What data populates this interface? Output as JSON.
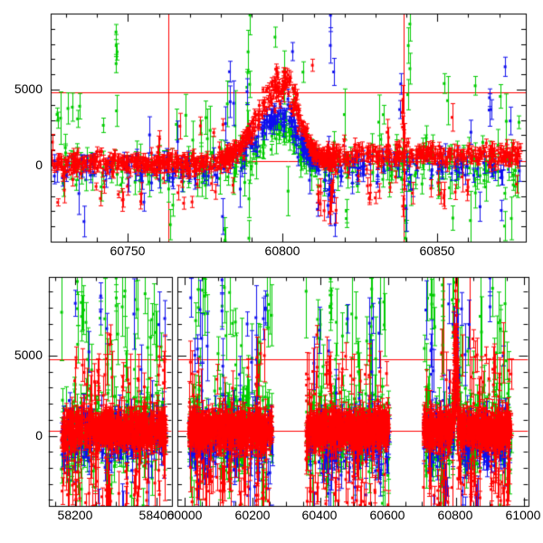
{
  "figure": {
    "background": "#ffffff",
    "frame_color": "#000000",
    "crosshair_color": "#ff0000",
    "colors": {
      "g": "#00cc00",
      "b": "#0f0fee",
      "r": "#ff0000"
    },
    "marker": "filled-square-with-error-bars"
  },
  "chart_data": [
    {
      "id": "top-panel",
      "type": "scatter",
      "title": "",
      "xlabel": "",
      "ylabel": "",
      "x_range": [
        60725,
        60878.6
      ],
      "y_range": [
        -5000,
        10000
      ],
      "x_tick_labels": [
        "60750",
        "60800",
        "60850"
      ],
      "x_tick_values": [
        60750,
        60800,
        60850
      ],
      "x_minor_step": 10,
      "y_tick_labels": [
        "5000",
        "0"
      ],
      "y_tick_values": [
        5000,
        0
      ],
      "y_minor_step": 1000,
      "crosshair": {
        "h_values": [
          4800,
          300
        ],
        "v_values": [
          60763,
          60839
        ]
      },
      "series_names": [
        "green-band",
        "blue-band",
        "red-band"
      ],
      "clusters": [
        [
          "g",
          250,
          60725,
          60877,
          -150,
          750,
          350,
          1100,
          0.12,
          0.68,
          1800,
          4500
        ],
        [
          "b",
          200,
          60725,
          60877,
          -150,
          500,
          250,
          700,
          0.09,
          0.45,
          1500,
          4000
        ],
        [
          "r",
          360,
          60725,
          60784,
          120,
          330,
          140,
          400,
          0.07,
          0.3,
          900,
          2600
        ],
        [
          "r",
          310,
          60814,
          60877,
          700,
          360,
          150,
          450,
          0.08,
          0.35,
          1000,
          3000
        ],
        [
          "g",
          60,
          60786,
          60812,
          -300,
          320,
          300,
          700,
          0,
          0.5,
          0,
          0
        ],
        [
          "b",
          95,
          60787,
          60812,
          -100,
          260,
          200,
          500,
          0,
          0.5,
          0,
          0
        ],
        [
          "r",
          290,
          60781,
          60818,
          250,
          300,
          150,
          350,
          0,
          0.5,
          0,
          0
        ],
        [
          "r",
          12,
          60811,
          60818,
          -2300,
          900,
          400,
          900,
          0,
          0.5,
          0,
          0
        ],
        [
          "b",
          10,
          60811,
          60818,
          -1900,
          1000,
          400,
          900,
          0,
          0.5,
          0,
          0
        ]
      ],
      "flares": [
        {
          "center": 60800,
          "sig_rise": 7.5,
          "sig_fall": 5,
          "x0": 60772,
          "x1": 60824,
          "amps": {
            "r": 5300,
            "g": 2400,
            "b": 3500
          }
        }
      ],
      "spikes": [
        [
          "g",
          60746.5,
          6600,
          8800,
          4,
          600
        ],
        [
          "g",
          60727,
          3200,
          3600,
          2,
          500
        ],
        [
          "g",
          60742,
          2500,
          2800,
          1,
          450
        ],
        [
          "b",
          60783,
          4300,
          6300,
          2,
          800
        ],
        [
          "g",
          60789,
          -4600,
          9800,
          7,
          1100
        ],
        [
          "b",
          60816,
          6300,
          9800,
          3,
          900
        ],
        [
          "r",
          60810,
          6500,
          6700,
          1,
          400
        ],
        [
          "g",
          60841,
          5000,
          9300,
          4,
          900
        ],
        [
          "b",
          60838,
          3600,
          5200,
          2,
          700
        ],
        [
          "r",
          60839,
          -2800,
          4400,
          9,
          800
        ],
        [
          "g",
          60840,
          -4800,
          -2800,
          3,
          800
        ],
        [
          "g",
          60855,
          -3600,
          -3300,
          1,
          700
        ],
        [
          "g",
          60852,
          5200,
          5600,
          1,
          600
        ],
        [
          "g",
          60862,
          5100,
          5400,
          1,
          600
        ],
        [
          "b",
          60867,
          3700,
          4400,
          2,
          600
        ],
        [
          "g",
          60870,
          4400,
          4700,
          1,
          600
        ],
        [
          "b",
          60872,
          6400,
          6600,
          1,
          700
        ],
        [
          "g",
          60876,
          2700,
          3000,
          1,
          500
        ],
        [
          "b",
          60871,
          -3200,
          -2700,
          1,
          600
        ],
        [
          "g",
          60820,
          -3500,
          -3000,
          2,
          700
        ],
        [
          "g",
          60781,
          -4900,
          -4200,
          2,
          900
        ],
        [
          "g",
          60797,
          8300,
          8600,
          1,
          600
        ],
        [
          "b",
          60803,
          7400,
          7600,
          1,
          700
        ],
        [
          "g",
          60806,
          6000,
          6300,
          1,
          600
        ],
        [
          "g",
          60833,
          3200,
          3500,
          1,
          500
        ],
        [
          "b",
          60755,
          -2600,
          -2200,
          1,
          600
        ],
        [
          "g",
          60764,
          -2800,
          -2400,
          1,
          700
        ]
      ]
    },
    {
      "id": "bottom-panel",
      "type": "scatter",
      "title": "",
      "xlabel": "",
      "ylabel": "",
      "y_range": [
        -4380,
        9915
      ],
      "y_tick_labels": [
        "5000",
        "0"
      ],
      "y_tick_values": [
        5000,
        0
      ],
      "y_minor_step": 1000,
      "segments": [
        {
          "x_range": [
            58134,
            58436
          ],
          "x_tick_labels": [
            "58200",
            "58400"
          ],
          "x_tick_values": [
            58200,
            58400
          ],
          "x_minor_step": 50
        },
        {
          "x_range": [
            59979,
            61012
          ],
          "x_tick_labels": [
            "60000",
            "60200",
            "60400",
            "60600",
            "60800",
            "61000"
          ],
          "x_tick_values": [
            60000,
            60200,
            60400,
            60600,
            60800,
            61000
          ],
          "x_minor_step": 50
        }
      ],
      "crosshair": {
        "h_values": [
          4800,
          300
        ],
        "v_values": [
          60763,
          60839
        ]
      },
      "series_names": [
        "green-band",
        "blue-band",
        "red-band"
      ],
      "clusters": [
        [
          "g",
          230,
          58165,
          58422,
          250,
          1250,
          450,
          1350,
          0.16,
          0.72,
          2500,
          9200
        ],
        [
          "b",
          190,
          58165,
          58422,
          -300,
          900,
          350,
          1000,
          0.12,
          0.5,
          2500,
          9200
        ],
        [
          "r",
          650,
          58165,
          58422,
          380,
          520,
          300,
          800,
          0.12,
          0.35,
          1500,
          4800
        ],
        [
          "g",
          230,
          60012,
          60258,
          250,
          1250,
          450,
          1350,
          0.16,
          0.72,
          2500,
          9200
        ],
        [
          "b",
          190,
          60012,
          60258,
          -300,
          900,
          350,
          1000,
          0.12,
          0.5,
          2500,
          9200
        ],
        [
          "r",
          650,
          60012,
          60258,
          380,
          520,
          300,
          800,
          0.12,
          0.35,
          1500,
          4800
        ],
        [
          "g",
          230,
          60358,
          60602,
          250,
          1250,
          450,
          1350,
          0.16,
          0.72,
          2500,
          9200
        ],
        [
          "b",
          190,
          60358,
          60602,
          -300,
          900,
          350,
          1000,
          0.12,
          0.5,
          2500,
          9200
        ],
        [
          "r",
          650,
          60358,
          60602,
          380,
          520,
          300,
          800,
          0.12,
          0.35,
          1500,
          4800
        ],
        [
          "g",
          240,
          60703,
          60962,
          250,
          1250,
          450,
          1350,
          0.16,
          0.72,
          2500,
          9200
        ],
        [
          "b",
          200,
          60703,
          60962,
          -300,
          900,
          350,
          1000,
          0.12,
          0.5,
          2500,
          9200
        ],
        [
          "r",
          660,
          60703,
          60962,
          380,
          520,
          300,
          800,
          0.12,
          0.35,
          1500,
          4800
        ],
        [
          "r",
          70,
          60790,
          60809,
          300,
          300,
          250,
          600,
          0,
          0.5,
          0,
          0
        ]
      ],
      "flares": [
        {
          "center": 60799,
          "sig_rise": 5,
          "sig_fall": 4,
          "x0": 60785,
          "x1": 60815,
          "amps": {
            "r": 5300,
            "g": 2200,
            "b": 3300
          }
        }
      ],
      "spikes": [
        [
          "g",
          58205,
          8000,
          9500,
          2,
          900
        ],
        [
          "b",
          58262,
          7800,
          8900,
          2,
          800
        ],
        [
          "g",
          58300,
          8700,
          9700,
          2,
          900
        ],
        [
          "r",
          58285,
          5600,
          6400,
          2,
          600
        ],
        [
          "g",
          60060,
          8600,
          9600,
          2,
          900
        ],
        [
          "b",
          60110,
          7600,
          9800,
          2,
          900
        ],
        [
          "g",
          60150,
          6800,
          7400,
          1,
          800
        ],
        [
          "g",
          60430,
          7800,
          9700,
          3,
          900
        ],
        [
          "r",
          60390,
          6100,
          6500,
          1,
          500
        ],
        [
          "b",
          60480,
          7000,
          7600,
          1,
          800
        ],
        [
          "g",
          60760,
          8300,
          9700,
          2,
          900
        ],
        [
          "b",
          60900,
          7900,
          9800,
          2,
          900
        ],
        [
          "g",
          60930,
          6900,
          7500,
          1,
          800
        ],
        [
          "r",
          60850,
          5800,
          6300,
          1,
          500
        ]
      ]
    }
  ]
}
